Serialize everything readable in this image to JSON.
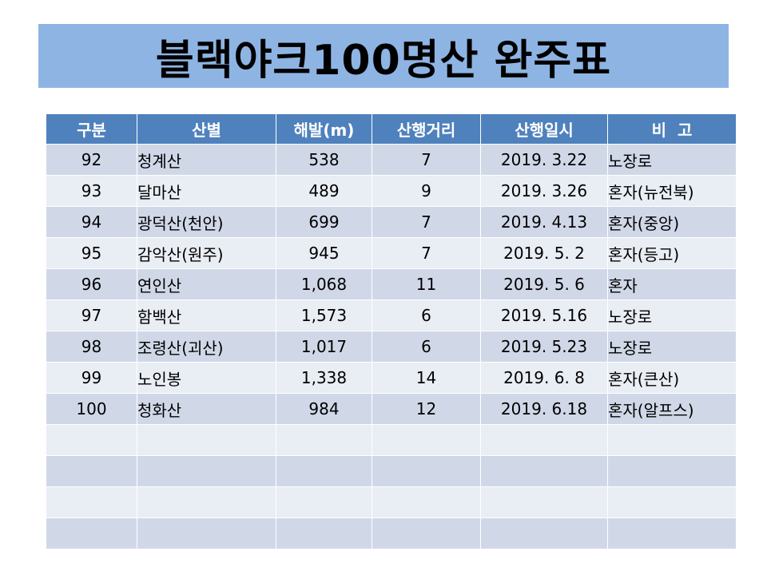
{
  "title": "블랙야크100명산 완주표",
  "table": {
    "headers": [
      "구분",
      "산별",
      "해발(m)",
      "산행거리",
      "산행일시",
      "비  고"
    ],
    "rows": [
      [
        "92",
        "청계산",
        "538",
        "7",
        "2019. 3.22",
        "노장로"
      ],
      [
        "93",
        "달마산",
        "489",
        "9",
        "2019. 3.26",
        "혼자(뉴전북)"
      ],
      [
        "94",
        "광덕산(천안)",
        "699",
        "7",
        "2019. 4.13",
        "혼자(중앙)"
      ],
      [
        "95",
        "감악산(원주)",
        "945",
        "7",
        "2019. 5. 2",
        "혼자(등고)"
      ],
      [
        "96",
        "연인산",
        "1,068",
        "11",
        "2019. 5. 6",
        "혼자"
      ],
      [
        "97",
        "함백산",
        "1,573",
        "6",
        "2019. 5.16",
        "노장로"
      ],
      [
        "98",
        "조령산(괴산)",
        "1,017",
        "6",
        "2019. 5.23",
        "노장로"
      ],
      [
        "99",
        "노인봉",
        "1,338",
        "14",
        "2019. 6. 8",
        "혼자(큰산)"
      ],
      [
        "100",
        "청화산",
        "984",
        "12",
        "2019. 6.18",
        "혼자(알프스)"
      ],
      [
        "",
        "",
        "",
        "",
        "",
        ""
      ],
      [
        "",
        "",
        "",
        "",
        "",
        ""
      ],
      [
        "",
        "",
        "",
        "",
        "",
        ""
      ],
      [
        "",
        "",
        "",
        "",
        "",
        ""
      ]
    ]
  }
}
